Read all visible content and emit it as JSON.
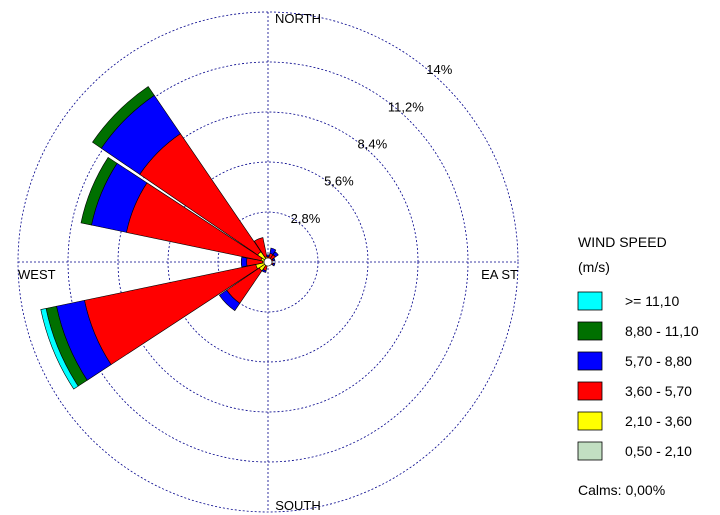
{
  "chart_data": {
    "type": "wind-rose",
    "directions": [
      "N",
      "NNE",
      "NE",
      "ENE",
      "E",
      "ESE",
      "SE",
      "SSE",
      "S",
      "SSW",
      "SW",
      "WSW",
      "W",
      "WNW",
      "NW",
      "NNW"
    ],
    "compass_labels": {
      "north": "NORTH",
      "east": "EA ST",
      "south": "SOUTH",
      "west": "WEST"
    },
    "ring_labels": [
      "2,8%",
      "5,6%",
      "8,4%",
      "11,2%",
      "14%"
    ],
    "ring_values": [
      2.8,
      5.6,
      8.4,
      11.2,
      14
    ],
    "speed_bins": [
      {
        "label": "0,50 - 2,10",
        "color": "#c2dfc2"
      },
      {
        "label": "2,10 - 3,60",
        "color": "#ffff00"
      },
      {
        "label": "3,60 - 5,70",
        "color": "#ff0000"
      },
      {
        "label": "5,70 - 8,80",
        "color": "#0000ff"
      },
      {
        "label": "8,80 - 11,10",
        "color": "#007000"
      },
      {
        "label": ">= 11,10",
        "color": "#00ffff"
      }
    ],
    "frequencies": [
      [
        0.0,
        0.1,
        0.2,
        0.1,
        0.0,
        0.0
      ],
      [
        0.0,
        0.2,
        0.3,
        0.3,
        0.0,
        0.0
      ],
      [
        0.0,
        0.2,
        0.3,
        0.2,
        0.0,
        0.0
      ],
      [
        0.0,
        0.1,
        0.2,
        0.1,
        0.0,
        0.0
      ],
      [
        0.0,
        0.1,
        0.1,
        0.0,
        0.0,
        0.0
      ],
      [
        0.0,
        0.1,
        0.2,
        0.1,
        0.0,
        0.0
      ],
      [
        0.0,
        0.1,
        0.1,
        0.0,
        0.0,
        0.0
      ],
      [
        0.0,
        0.1,
        0.1,
        0.0,
        0.0,
        0.0
      ],
      [
        0.0,
        0.1,
        0.1,
        0.0,
        0.0,
        0.0
      ],
      [
        0.0,
        0.2,
        0.3,
        0.1,
        0.0,
        0.0
      ],
      [
        0.0,
        0.6,
        2.2,
        0.5,
        0.0,
        0.0
      ],
      [
        0.1,
        0.6,
        9.8,
        1.6,
        0.6,
        0.3
      ],
      [
        0.0,
        0.3,
        0.9,
        0.3,
        0.0,
        0.0
      ],
      [
        0.0,
        0.4,
        7.7,
        2.0,
        0.6,
        0.0
      ],
      [
        0.1,
        0.6,
        8.0,
        2.6,
        0.6,
        0.0
      ],
      [
        0.0,
        0.3,
        1.1,
        0.0,
        0.0,
        0.0
      ]
    ]
  },
  "legend": {
    "title_line1": "WIND SPEED",
    "title_line2": "(m/s)",
    "items": [
      {
        "label": ">= 11,10",
        "color": "#00ffff"
      },
      {
        "label": "8,80 - 11,10",
        "color": "#007000"
      },
      {
        "label": "5,70 - 8,80",
        "color": "#0000ff"
      },
      {
        "label": "3,60 - 5,70",
        "color": "#ff0000"
      },
      {
        "label": "2,10 - 3,60",
        "color": "#ffff00"
      },
      {
        "label": "0,50 - 2,10",
        "color": "#c2dfc2"
      }
    ],
    "calms": "Calms: 0,00%"
  }
}
